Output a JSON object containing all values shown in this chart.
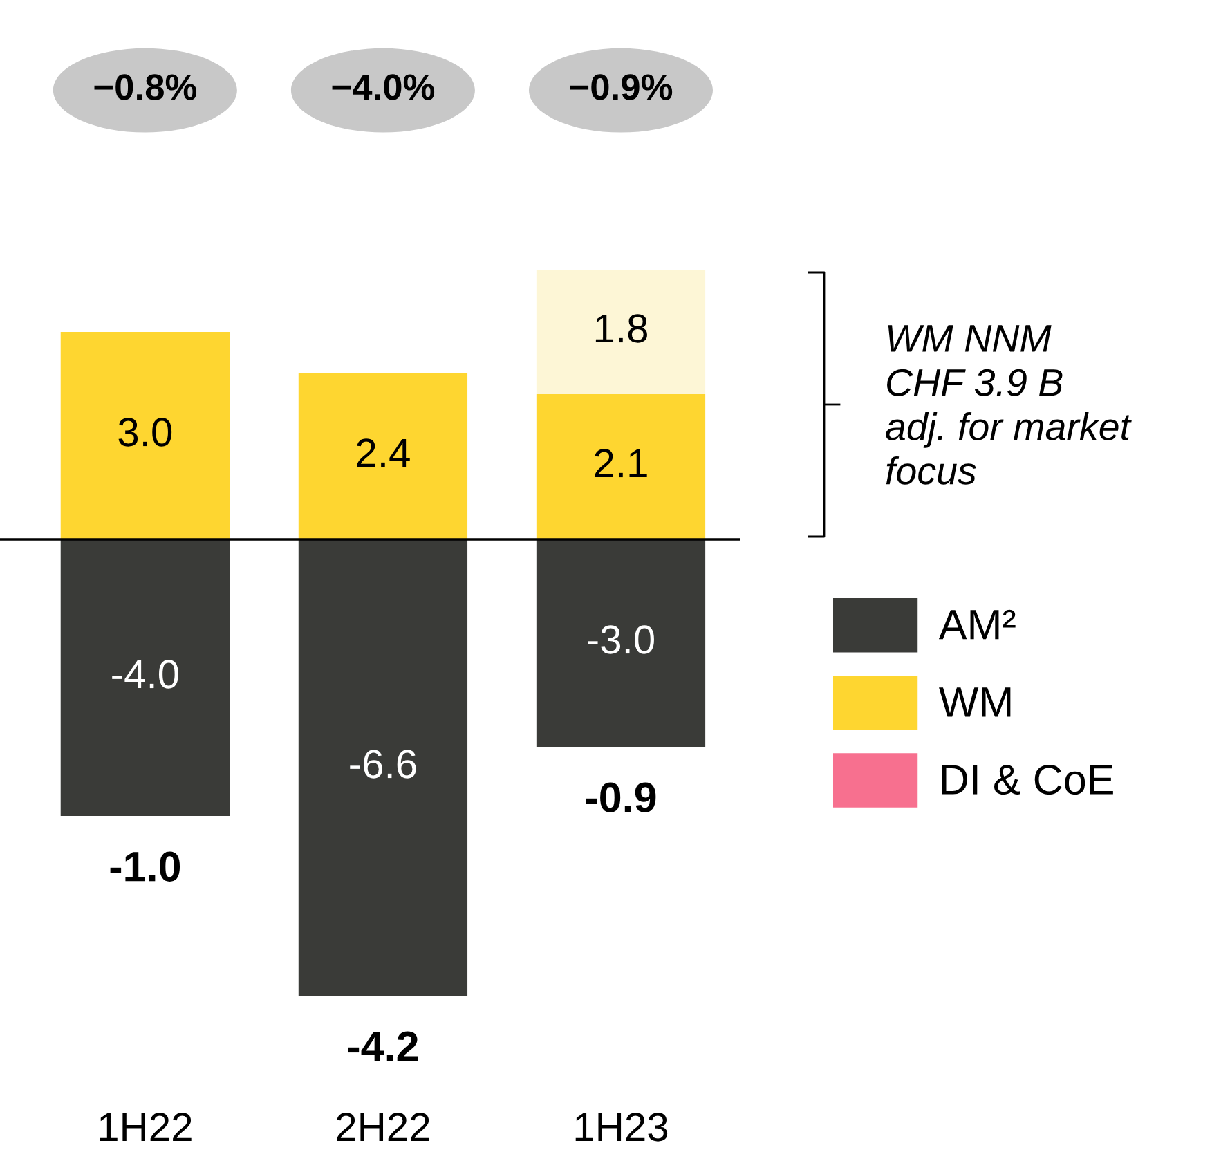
{
  "chart_data": {
    "type": "bar",
    "stacked": true,
    "categories": [
      "1H22",
      "2H22",
      "1H23"
    ],
    "series": [
      {
        "name": "AM²",
        "color": "#3a3b38",
        "values": [
          -4.0,
          -6.6,
          -3.0
        ],
        "value_labels": [
          "-4.0",
          "-6.6",
          "-3.0"
        ]
      },
      {
        "name": "WM",
        "color": "#fed630",
        "values": [
          3.0,
          2.4,
          2.1
        ],
        "value_labels": [
          "3.0",
          "2.4",
          "2.1"
        ]
      },
      {
        "name": "DI & CoE",
        "color": "#f7708f",
        "values": [
          null,
          null,
          null
        ]
      },
      {
        "color": "#fdf6d6",
        "values": [
          null,
          null,
          1.8
        ],
        "value_labels": [
          null,
          null,
          "1.8"
        ]
      }
    ],
    "annotations": [
      "−0.8%",
      "−4.0%",
      "−0.9%",
      "WM NNM\nCHF 3.9 B\nadj. for market\nfocus",
      {
        "text": "-1.0",
        "x": "1H22",
        "y": -4.0
      },
      {
        "text": "-4.2",
        "x": "2H22",
        "y": -6.6
      },
      {
        "text": "-0.9",
        "x": "1H23",
        "y": -3.0
      }
    ],
    "legend": "right",
    "grid": false
  }
}
